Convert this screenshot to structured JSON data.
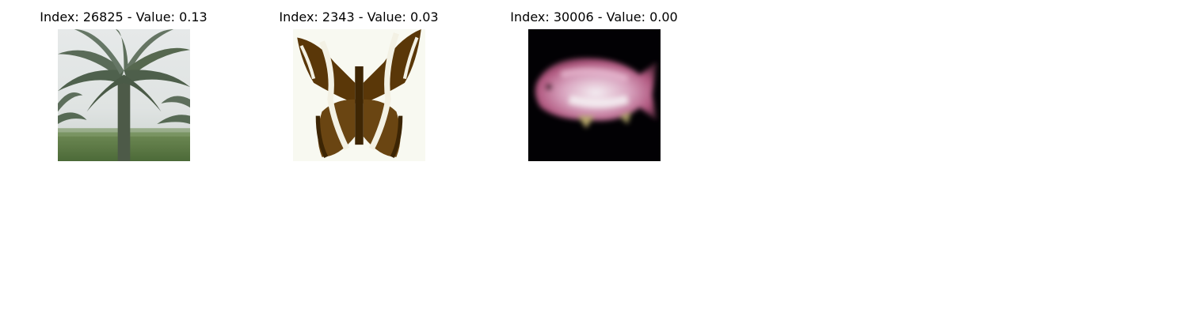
{
  "panels": [
    {
      "title": "Index: 26825 - Value: 0.13",
      "subject": "palm-tree"
    },
    {
      "title": "Index: 2343 - Value: 0.03",
      "subject": "butterfly"
    },
    {
      "title": "Index: 30006 - Value: 0.00",
      "subject": "fish"
    }
  ]
}
